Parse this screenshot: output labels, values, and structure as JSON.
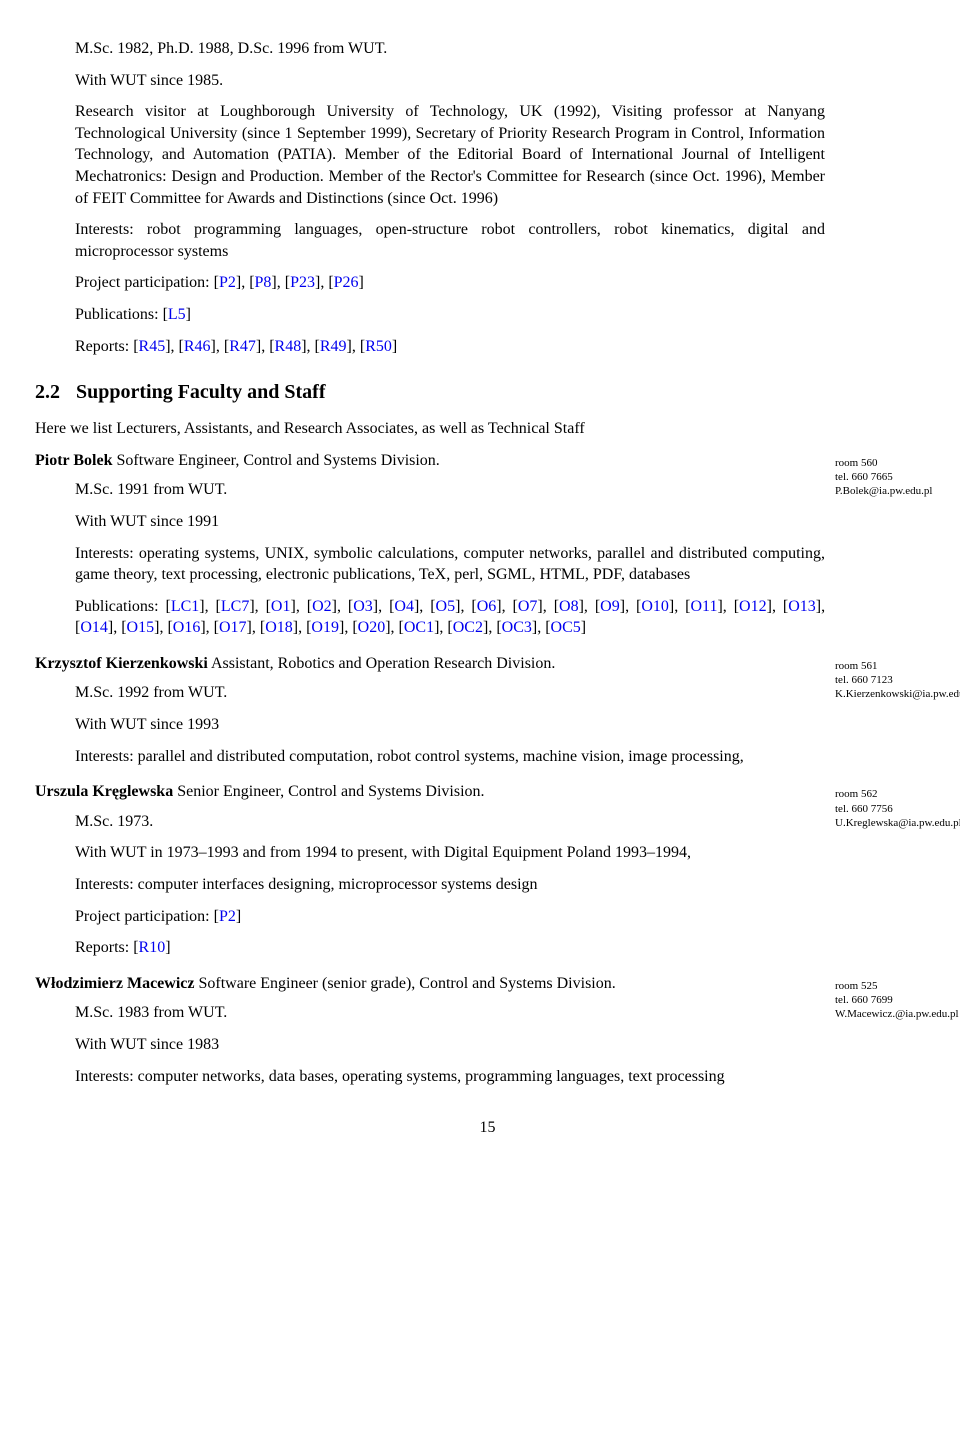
{
  "top": {
    "degrees": "M.Sc. 1982, Ph.D. 1988, D.Sc. 1996 from WUT.",
    "since": "With WUT since 1985.",
    "bio": "Research visitor at Loughborough University of Technology, UK (1992), Visiting professor at Nanyang Technological University (since 1 September 1999), Secretary of Priority Research Program in Control, Information Technology, and Automation (PATIA). Member of the Editorial Board of International Journal of Intelligent Mechatronics: Design and Production. Member of the Rector's Committee for Research (since Oct. 1996), Member of FEIT Committee for Awards and Distinctions (since Oct. 1996)",
    "interests": "Interests: robot programming languages, open-structure robot controllers, robot kinematics, digital and microprocessor systems",
    "proj_label": "Project participation: ",
    "proj_links": [
      "P2",
      "P8",
      "P23",
      "P26"
    ],
    "pub_label": "Publications: ",
    "pub_links": [
      "L5"
    ],
    "rep_label": "Reports: ",
    "rep_links": [
      "R45",
      "R46",
      "R47",
      "R48",
      "R49",
      "R50"
    ]
  },
  "section": {
    "num": "2.2",
    "title": "Supporting Faculty and Staff",
    "intro": "Here we list Lecturers, Assistants, and Research Associates, as well as Technical Staff"
  },
  "people": [
    {
      "name": "Piotr Bolek",
      "role": "  Software Engineer, Control and Systems Division.",
      "degree": "M.Sc. 1991 from WUT.",
      "since": "With WUT since 1991",
      "interests": "Interests: operating systems, UNIX, symbolic calculations, computer networks, parallel and distributed computing, game theory, text processing, electronic publications, TeX, perl, SGML, HTML, PDF, databases",
      "pub_label": "Publications: ",
      "pub_links": [
        "LC1",
        "LC7",
        "O1",
        "O2",
        "O3",
        "O4",
        "O5",
        "O6",
        "O7",
        "O8",
        "O9",
        "O10",
        "O11",
        "O12",
        "O13",
        "O14",
        "O15",
        "O16",
        "O17",
        "O18",
        "O19",
        "O20",
        "OC1",
        "OC2",
        "OC3",
        "OC5"
      ],
      "note": {
        "room": "room 560",
        "tel": "tel. 660 7665",
        "mail": "P.Bolek@ia.pw.edu.pl"
      }
    },
    {
      "name": "Krzysztof Kierzenkowski",
      "role": "  Assistant, Robotics and Operation Research Division.",
      "degree": "M.Sc. 1992 from WUT.",
      "since": "With WUT since 1993",
      "interests": "Interests: parallel and distributed computation, robot control systems, machine vision, image processing,",
      "note": {
        "room": "room 561",
        "tel": "tel. 660 7123",
        "mail": "K.Kierzenkowski@ia.pw.edu.pl"
      }
    },
    {
      "name": "Urszula Kręglewska",
      "role": "  Senior Engineer, Control and Systems Division.",
      "degree": "M.Sc. 1973.",
      "since": "With WUT in 1973–1993 and from 1994 to present, with Digital Equipment Poland 1993–1994,",
      "interests": "Interests: computer interfaces designing, microprocessor systems design",
      "proj_label": "Project participation: ",
      "proj_links": [
        "P2"
      ],
      "rep_label": "Reports: ",
      "rep_links": [
        "R10"
      ],
      "note": {
        "room": "room 562",
        "tel": "tel. 660 7756",
        "mail": "U.Kreglewska@ia.pw.edu.pl"
      }
    },
    {
      "name": "Włodzimierz Macewicz",
      "role": "  Software Engineer (senior grade), Control and Systems Division.",
      "degree": "M.Sc. 1983 from WUT.",
      "since": "With WUT since 1983",
      "interests": "Interests: computer networks, data bases, operating systems, programming languages, text processing",
      "note": {
        "room": "room 525",
        "tel": "tel. 660 7699",
        "mail": "W.Macewicz.@ia.pw.edu.pl"
      }
    }
  ],
  "pagenum": "15"
}
